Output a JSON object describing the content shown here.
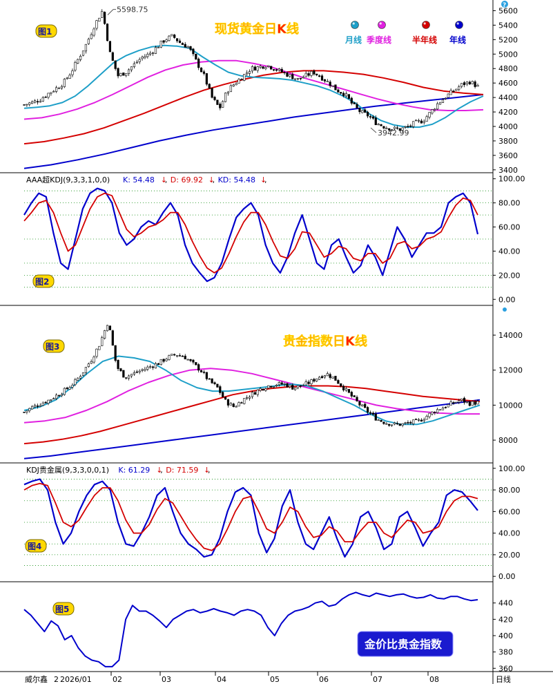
{
  "chart_data": [
    {
      "type": "candlestick",
      "panel": "图1",
      "title": "现货黄金日K线",
      "y_axis": {
        "ticks": [
          3400,
          3600,
          3800,
          4000,
          4200,
          4400,
          4600,
          4800,
          5000,
          5200,
          5400,
          5600
        ],
        "ylim": [
          3360,
          5700
        ]
      },
      "legend": [
        {
          "label": "月线",
          "color": "#1e9fc8"
        },
        {
          "label": "季度线",
          "color": "#e020e0"
        },
        {
          "label": "半年线",
          "color": "#d40000"
        },
        {
          "label": "年线",
          "color": "#0000cc"
        }
      ],
      "annotations": [
        {
          "text": "5598.75",
          "value": 5598.75,
          "kind": "high"
        },
        {
          "text": "3942.99",
          "value": 3942.99,
          "kind": "low"
        }
      ],
      "closes": [
        4300,
        4330,
        4370,
        4450,
        4520,
        4600,
        4750,
        4950,
        5150,
        5400,
        5598,
        5000,
        4700,
        4750,
        4850,
        4950,
        5000,
        5100,
        5200,
        5250,
        5150,
        5100,
        4900,
        4700,
        4400,
        4250,
        4500,
        4600,
        4700,
        4800,
        4820,
        4850,
        4800,
        4750,
        4700,
        4650,
        4700,
        4750,
        4680,
        4600,
        4500,
        4450,
        4300,
        4200,
        4150,
        4050,
        4000,
        3970,
        3960,
        3990,
        4050,
        4080,
        4200,
        4330,
        4420,
        4500,
        4580,
        4620,
        4550
      ],
      "ma_month": [
        4250,
        4265,
        4285,
        4330,
        4420,
        4560,
        4720,
        4880,
        4980,
        5050,
        5100,
        5120,
        5110,
        5080,
        4960,
        4850,
        4750,
        4700,
        4680,
        4670,
        4660,
        4640,
        4600,
        4560,
        4500,
        4420,
        4320,
        4180,
        4080,
        4020,
        3990,
        3990,
        4030,
        4120,
        4240,
        4340,
        4420
      ],
      "ma_quarter": [
        4100,
        4120,
        4170,
        4240,
        4330,
        4440,
        4560,
        4680,
        4780,
        4850,
        4890,
        4910,
        4910,
        4870,
        4820,
        4740,
        4660,
        4590,
        4520,
        4450,
        4380,
        4320,
        4270,
        4230,
        4220,
        4220,
        4230
      ],
      "ma_halfyear": [
        3760,
        3790,
        3840,
        3900,
        3980,
        4080,
        4180,
        4290,
        4400,
        4500,
        4580,
        4650,
        4710,
        4750,
        4770,
        4770,
        4750,
        4720,
        4670,
        4610,
        4540,
        4490,
        4460,
        4440
      ],
      "ma_year": [
        3420,
        3470,
        3540,
        3620,
        3710,
        3800,
        3880,
        3950,
        4010,
        4070,
        4130,
        4180,
        4230,
        4280,
        4320,
        4360,
        4400,
        4440
      ]
    },
    {
      "type": "line",
      "panel": "图2",
      "title": "AAA超KDJ(9,3,3,1,0,0)",
      "readout": [
        {
          "label": "K: 54.48",
          "arrow": "↓",
          "color": "#0000cc"
        },
        {
          "label": "D: 69.92",
          "arrow": "↓",
          "color": "#d40000"
        },
        {
          "label": "KD: 54.48",
          "arrow": "↓",
          "color": "#0000cc"
        }
      ],
      "y_axis": {
        "ticks": [
          "0.00",
          "20.00",
          "40.00",
          "60.00",
          "80.00",
          "100.00"
        ],
        "ylim": [
          -5,
          105
        ]
      },
      "series": [
        {
          "name": "K",
          "values": [
            70,
            80,
            88,
            85,
            55,
            30,
            25,
            50,
            75,
            88,
            92,
            90,
            80,
            55,
            45,
            50,
            60,
            65,
            62,
            72,
            80,
            70,
            45,
            30,
            22,
            15,
            18,
            30,
            50,
            68,
            75,
            80,
            70,
            45,
            30,
            22,
            35,
            55,
            70,
            50,
            30,
            25,
            45,
            50,
            35,
            22,
            28,
            45,
            35,
            20,
            40,
            60,
            50,
            35,
            45,
            55,
            55,
            60,
            80,
            85,
            88,
            80,
            54
          ]
        },
        {
          "name": "D",
          "values": [
            65,
            72,
            80,
            82,
            72,
            55,
            40,
            45,
            60,
            75,
            85,
            88,
            86,
            72,
            58,
            52,
            55,
            60,
            62,
            66,
            72,
            72,
            62,
            48,
            36,
            26,
            22,
            26,
            38,
            52,
            64,
            72,
            72,
            62,
            48,
            36,
            34,
            42,
            56,
            55,
            45,
            35,
            38,
            44,
            42,
            34,
            32,
            38,
            38,
            30,
            34,
            46,
            48,
            42,
            44,
            50,
            52,
            56,
            68,
            78,
            84,
            82,
            70
          ]
        }
      ]
    },
    {
      "type": "candlestick",
      "panel": "图3",
      "title": "贵金指数日K线",
      "y_axis": {
        "ticks": [
          8000,
          10000,
          12000,
          14000
        ],
        "ylim": [
          6700,
          15700
        ]
      },
      "closes": [
        9600,
        9900,
        10100,
        10300,
        10600,
        10900,
        11300,
        11900,
        12600,
        13500,
        14800,
        12200,
        11600,
        11800,
        12000,
        12200,
        12400,
        12700,
        12900,
        12800,
        12400,
        12000,
        11400,
        11000,
        10200,
        9900,
        10300,
        10600,
        10900,
        11100,
        11200,
        11200,
        11000,
        11100,
        11300,
        11600,
        11800,
        11500,
        11000,
        10500,
        10000,
        9600,
        9200,
        9000,
        8900,
        8900,
        9000,
        9100,
        9400,
        9700,
        9900,
        10100,
        10300,
        10100,
        10150
      ],
      "ma_month": [
        9700,
        9900,
        10300,
        11000,
        11800,
        12500,
        12800,
        12700,
        12500,
        12000,
        11400,
        11000,
        10800,
        10800,
        10900,
        11000,
        11100,
        11200,
        11100,
        10800,
        10400,
        10000,
        9500,
        9100,
        8900,
        8900,
        9100,
        9400,
        9700,
        10000
      ],
      "ma_quarter": [
        9000,
        9100,
        9300,
        9700,
        10200,
        10800,
        11300,
        11700,
        12000,
        12100,
        12000,
        11800,
        11500,
        11200,
        10900,
        10600,
        10300,
        10000,
        9800,
        9650,
        9550,
        9500,
        9500
      ],
      "ma_halfyear": [
        7800,
        7900,
        8050,
        8250,
        8500,
        8800,
        9100,
        9400,
        9700,
        10000,
        10300,
        10600,
        10800,
        10950,
        11050,
        11100,
        11100,
        11050,
        10950,
        10800,
        10650,
        10500,
        10400,
        10300,
        10200
      ],
      "ma_year": [
        6950,
        7100,
        7300,
        7500,
        7700,
        7900,
        8100,
        8300,
        8500,
        8700,
        8900,
        9100,
        9300,
        9500,
        9700,
        9900,
        10100,
        10300
      ]
    },
    {
      "type": "line",
      "panel": "图4",
      "title": "KDJ贵金属(9,3,3,0,0,1)",
      "readout": [
        {
          "label": "K: 61.29",
          "arrow": "↓",
          "color": "#0000cc"
        },
        {
          "label": "D: 71.59",
          "arrow": "↓",
          "color": "#d40000"
        }
      ],
      "y_axis": {
        "ticks": [
          "0.00",
          "20.00",
          "40.00",
          "60.00",
          "80.00",
          "100.00"
        ],
        "ylim": [
          -5,
          105
        ]
      },
      "series": [
        {
          "name": "K",
          "values": [
            85,
            88,
            90,
            80,
            50,
            30,
            40,
            60,
            75,
            85,
            88,
            80,
            50,
            30,
            28,
            40,
            55,
            75,
            82,
            60,
            40,
            30,
            25,
            18,
            20,
            35,
            60,
            78,
            82,
            75,
            40,
            22,
            35,
            65,
            80,
            50,
            30,
            25,
            40,
            55,
            35,
            18,
            30,
            55,
            60,
            45,
            25,
            30,
            55,
            60,
            45,
            28,
            40,
            50,
            75,
            80,
            78,
            70,
            61
          ]
        },
        {
          "name": "D",
          "values": [
            80,
            84,
            86,
            84,
            68,
            50,
            46,
            52,
            64,
            75,
            82,
            82,
            70,
            52,
            40,
            40,
            48,
            62,
            72,
            68,
            56,
            44,
            34,
            26,
            24,
            30,
            44,
            60,
            72,
            74,
            60,
            44,
            40,
            50,
            64,
            60,
            46,
            36,
            38,
            46,
            42,
            32,
            32,
            42,
            50,
            50,
            40,
            36,
            44,
            52,
            50,
            40,
            42,
            46,
            60,
            70,
            74,
            74,
            72
          ]
        }
      ]
    },
    {
      "type": "line",
      "panel": "图5",
      "title": "金价比贵金指数",
      "y_axis": {
        "ticks": [
          360,
          380,
          400,
          420,
          440
        ],
        "ylim": [
          356,
          466
        ]
      },
      "series": [
        {
          "name": "",
          "values": [
            432,
            425,
            415,
            405,
            418,
            412,
            395,
            400,
            385,
            375,
            370,
            368,
            362,
            362,
            370,
            420,
            437,
            430,
            430,
            425,
            418,
            410,
            420,
            425,
            430,
            432,
            428,
            430,
            433,
            430,
            428,
            425,
            430,
            432,
            430,
            425,
            410,
            400,
            415,
            425,
            430,
            432,
            435,
            440,
            442,
            436,
            438,
            445,
            450,
            453,
            450,
            448,
            452,
            450,
            448,
            450,
            451,
            448,
            446,
            447,
            450,
            446,
            445,
            448,
            448,
            445,
            443,
            444
          ]
        }
      ]
    }
  ],
  "ui": {
    "panel_labels": [
      "图1",
      "图2",
      "图3",
      "图4",
      "图5"
    ],
    "bottom_left": "威尔鑫",
    "x_ticks": [
      "2",
      "2026/01",
      "02",
      "03",
      "04",
      "05",
      "06",
      "07",
      "08"
    ],
    "bottom_right": "日线",
    "help_icon": "question-icon",
    "colors": {
      "k_line": "#0000cc",
      "d_line": "#d40000",
      "grid": "#0a8a0a",
      "title": "#ff2000",
      "title_shadow": "#ffd400",
      "label_bg": "#ffd800",
      "badge_bg": "#1a1acf"
    }
  }
}
